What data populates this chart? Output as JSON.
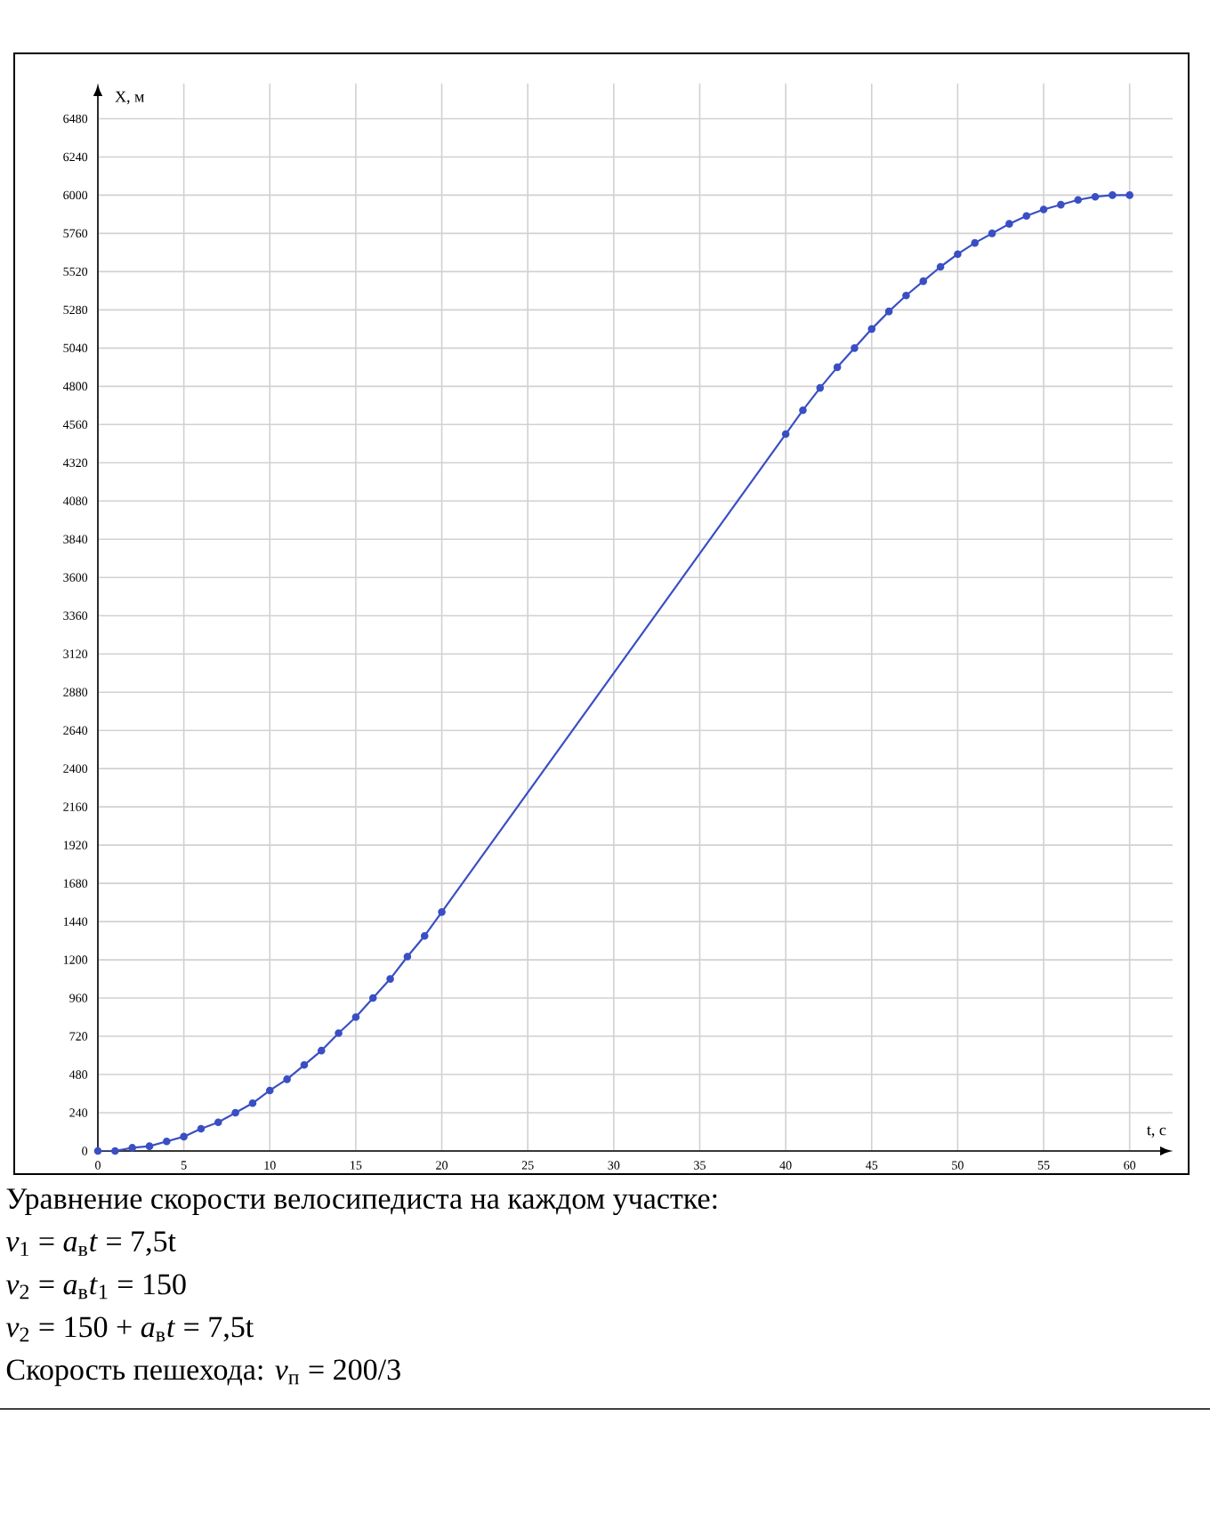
{
  "chart_data": {
    "type": "line",
    "xlabel": "t, с",
    "ylabel": "X, м",
    "series": [
      {
        "color": "#3a4fc4",
        "x": [
          0,
          1,
          2,
          3,
          4,
          5,
          6,
          7,
          8,
          9,
          10,
          11,
          12,
          13,
          14,
          15,
          16,
          17,
          18,
          19,
          20,
          40,
          41,
          42,
          43,
          44,
          45,
          46,
          47,
          48,
          49,
          50,
          51,
          52,
          53,
          54,
          55,
          56,
          57,
          58,
          59,
          60
        ],
        "values": [
          0,
          0,
          20,
          30,
          60,
          90,
          140,
          180,
          240,
          300,
          380,
          450,
          540,
          630,
          740,
          840,
          960,
          1080,
          1220,
          1350,
          1500,
          4500,
          4650,
          4790,
          4920,
          5040,
          5160,
          5270,
          5370,
          5460,
          5550,
          5630,
          5700,
          5760,
          5820,
          5870,
          5910,
          5940,
          5970,
          5990,
          6000,
          6000
        ]
      }
    ],
    "xlim": [
      0,
      62.5
    ],
    "ylim": [
      0,
      6700
    ],
    "xticks": [
      0,
      5,
      10,
      15,
      20,
      25,
      30,
      35,
      40,
      45,
      50,
      55,
      60
    ],
    "yticks": [
      0,
      240,
      480,
      720,
      960,
      1200,
      1440,
      1680,
      1920,
      2160,
      2400,
      2640,
      2880,
      3120,
      3360,
      3600,
      3840,
      4080,
      4320,
      4560,
      4800,
      5040,
      5280,
      5520,
      5760,
      6000,
      6240,
      6480
    ],
    "grid": true,
    "marker": "circle",
    "line_style": "solid",
    "annotations": [
      "Уравнение скорости велосипедиста на каждом участке:",
      "*v*$_{1}$ = *a*$_{в}$*t* = 7,5t",
      "*v*$_{2}$ = *a*$_{в}$*t*$_{1}$ = 150",
      "*v*$_{2}$ = 150 + *a*$_{в}$*t* = 7,5t",
      "Скорость пешехода: *v*$_{п}$ = 200/3"
    ]
  }
}
